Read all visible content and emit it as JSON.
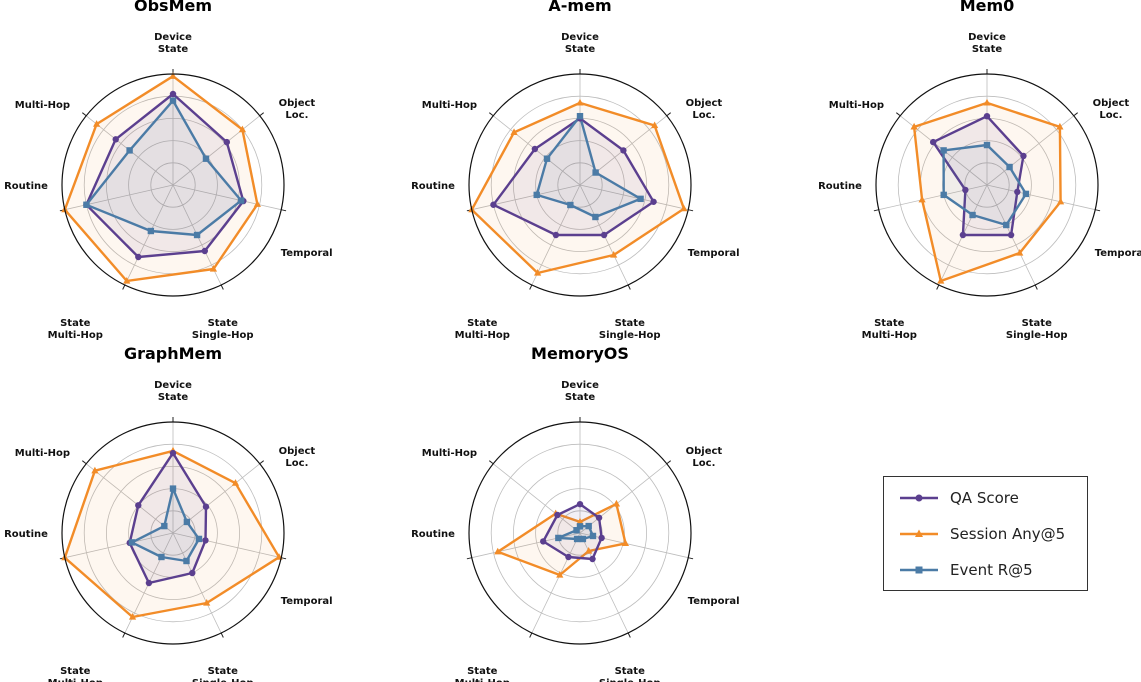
{
  "chart_data": [
    {
      "type": "radar",
      "title": "ObsMem",
      "axes": [
        "Device\nState",
        "Object\nLoc.",
        "Temporal",
        "State\nSingle-Hop",
        "State\nMulti-Hop",
        "Routine",
        "Multi-Hop"
      ],
      "series": [
        {
          "name": "QA Score",
          "values": [
            0.82,
            0.62,
            0.65,
            0.66,
            0.72,
            0.8,
            0.66
          ]
        },
        {
          "name": "Session Any@5",
          "values": [
            0.98,
            0.8,
            0.78,
            0.84,
            0.96,
            1.0,
            0.88
          ]
        },
        {
          "name": "Event R@5",
          "values": [
            0.76,
            0.38,
            0.63,
            0.5,
            0.46,
            0.8,
            0.5
          ]
        }
      ]
    },
    {
      "type": "radar",
      "title": "A-mem",
      "axes": [
        "Device\nState",
        "Object\nLoc.",
        "Temporal",
        "State\nSingle-Hop",
        "State\nMulti-Hop",
        "Routine",
        "Multi-Hop"
      ],
      "series": [
        {
          "name": "QA Score",
          "values": [
            0.6,
            0.5,
            0.68,
            0.5,
            0.5,
            0.8,
            0.52
          ]
        },
        {
          "name": "Session Any@5",
          "values": [
            0.74,
            0.86,
            0.96,
            0.7,
            0.88,
            1.0,
            0.76
          ]
        },
        {
          "name": "Event R@5",
          "values": [
            0.62,
            0.18,
            0.56,
            0.32,
            0.2,
            0.4,
            0.38
          ]
        }
      ]
    },
    {
      "type": "radar",
      "title": "Mem0",
      "axes": [
        "Device\nState",
        "Object\nLoc.",
        "Temporal",
        "State\nSingle-Hop",
        "State\nMulti-Hop",
        "Routine",
        "Multi-Hop"
      ],
      "series": [
        {
          "name": "QA Score",
          "values": [
            0.62,
            0.42,
            0.28,
            0.5,
            0.5,
            0.2,
            0.62
          ]
        },
        {
          "name": "Session Any@5",
          "values": [
            0.74,
            0.84,
            0.68,
            0.68,
            0.96,
            0.6,
            0.84
          ]
        },
        {
          "name": "Event R@5",
          "values": [
            0.36,
            0.26,
            0.36,
            0.4,
            0.3,
            0.4,
            0.5
          ]
        }
      ]
    },
    {
      "type": "radar",
      "title": "GraphMem",
      "axes": [
        "Device\nState",
        "Object\nLoc.",
        "Temporal",
        "State\nSingle-Hop",
        "State\nMulti-Hop",
        "Routine",
        "Multi-Hop"
      ],
      "series": [
        {
          "name": "QA Score",
          "values": [
            0.72,
            0.38,
            0.3,
            0.4,
            0.5,
            0.4,
            0.4
          ]
        },
        {
          "name": "Session Any@5",
          "values": [
            0.74,
            0.72,
            0.98,
            0.7,
            0.84,
            1.0,
            0.9
          ]
        },
        {
          "name": "Event R@5",
          "values": [
            0.4,
            0.16,
            0.24,
            0.28,
            0.24,
            0.38,
            0.1
          ]
        }
      ]
    },
    {
      "type": "radar",
      "title": "MemoryOS",
      "axes": [
        "Device\nState",
        "Object\nLoc.",
        "Temporal",
        "State\nSingle-Hop",
        "State\nMulti-Hop",
        "Routine",
        "Multi-Hop"
      ],
      "series": [
        {
          "name": "QA Score",
          "values": [
            0.26,
            0.22,
            0.2,
            0.26,
            0.24,
            0.34,
            0.26
          ]
        },
        {
          "name": "Session Any@5",
          "values": [
            0.1,
            0.42,
            0.42,
            0.18,
            0.42,
            0.76,
            0.28
          ]
        },
        {
          "name": "Event R@5",
          "values": [
            0.06,
            0.1,
            0.12,
            0.06,
            0.06,
            0.2,
            0.04
          ]
        }
      ]
    }
  ],
  "legend": {
    "items": [
      {
        "label": "QA Score",
        "marker": "circle",
        "color": "#5b3f8f"
      },
      {
        "label": "Session Any@5",
        "marker": "triangle",
        "color": "#f28c28"
      },
      {
        "label": "Event R@5",
        "marker": "square",
        "color": "#4b7ba6"
      }
    ]
  },
  "colors": {
    "qa": "#5b3f8f",
    "session": "#f28c28",
    "event": "#4b7ba6"
  }
}
